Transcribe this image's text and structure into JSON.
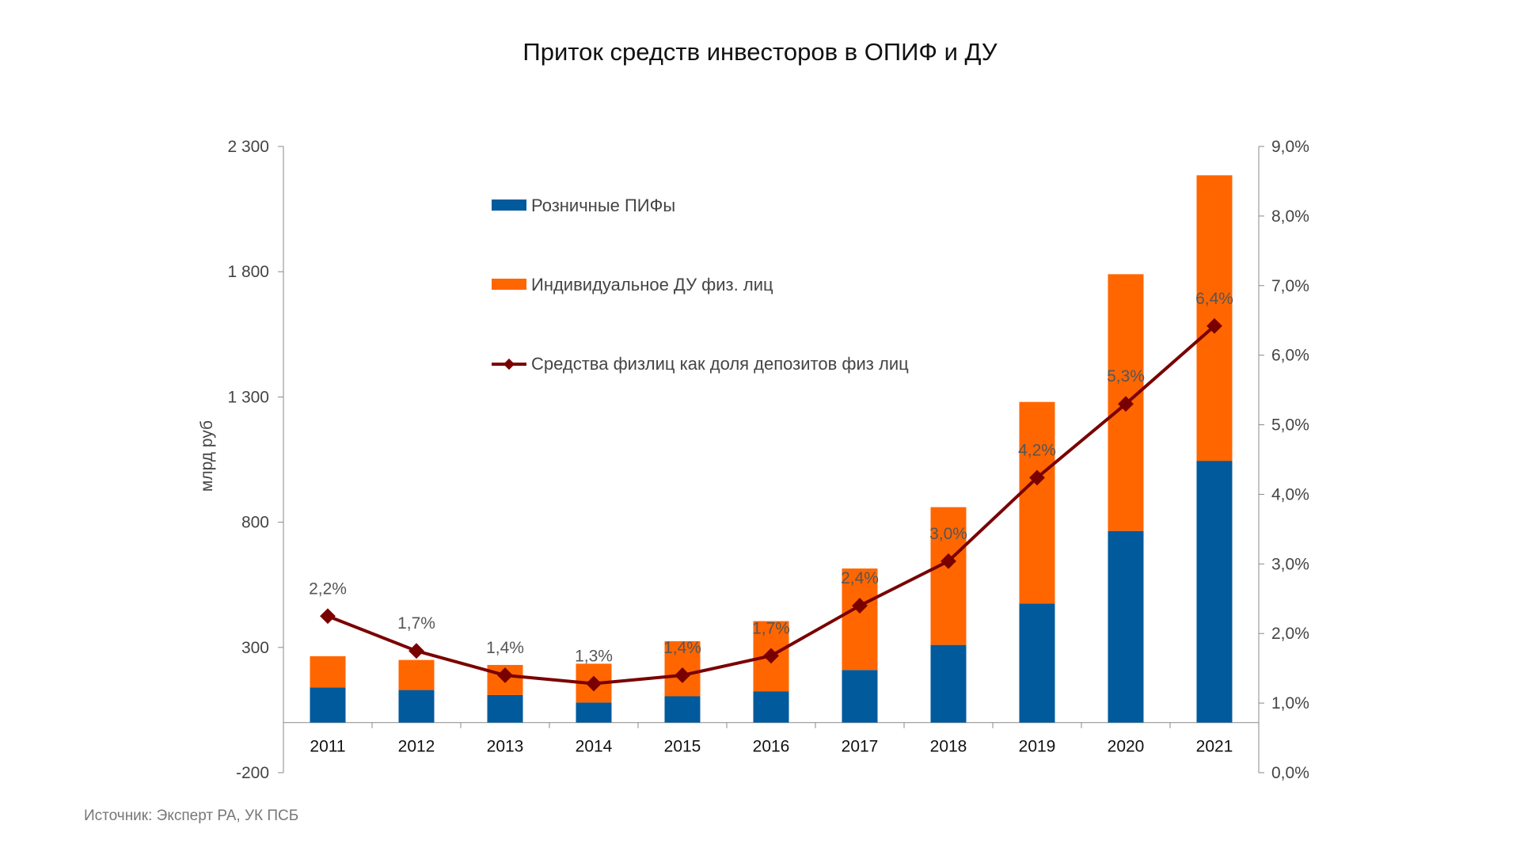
{
  "chart_data": {
    "type": "bar",
    "stacked": true,
    "title": "Приток средств инвесторов в ОПИФ и ДУ",
    "ylabel": "млрд руб",
    "ylim": [
      -200,
      2300
    ],
    "yticks": [
      "2 300",
      "1 800",
      "1 300",
      "800",
      "300",
      "-200"
    ],
    "y2lim": [
      0,
      9
    ],
    "y2ticks": [
      "9,0%",
      "8,0%",
      "7,0%",
      "6,0%",
      "5,0%",
      "4,0%",
      "3,0%",
      "2,0%",
      "1,0%",
      "0,0%"
    ],
    "categories": [
      "2011",
      "2012",
      "2013",
      "2014",
      "2015",
      "2016",
      "2017",
      "2018",
      "2019",
      "2020",
      "2021"
    ],
    "series": [
      {
        "name": "Розничные ПИФы",
        "type": "bar",
        "color": "#005a9c",
        "values": [
          140,
          130,
          110,
          80,
          105,
          125,
          210,
          310,
          475,
          765,
          1045
        ]
      },
      {
        "name": "Индивидуальное ДУ физ. лиц",
        "type": "bar",
        "color": "#ff6600",
        "values": [
          125,
          120,
          120,
          155,
          220,
          280,
          405,
          550,
          805,
          1025,
          1140
        ]
      },
      {
        "name": "Средства физлиц как доля депозитов физ лиц",
        "type": "line",
        "axis": "right",
        "color": "#7a0000",
        "values": [
          2.25,
          1.75,
          1.4,
          1.28,
          1.4,
          1.68,
          2.4,
          3.04,
          4.24,
          5.3,
          6.42
        ],
        "labels": [
          "2,2%",
          "1,7%",
          "1,4%",
          "1,3%",
          "1,4%",
          "1,7%",
          "2,4%",
          "3,0%",
          "4,2%",
          "5,3%",
          "6,4%"
        ]
      }
    ],
    "legend_position": "top-left"
  },
  "source": "Источник: Эксперт РА, УК ПСБ"
}
